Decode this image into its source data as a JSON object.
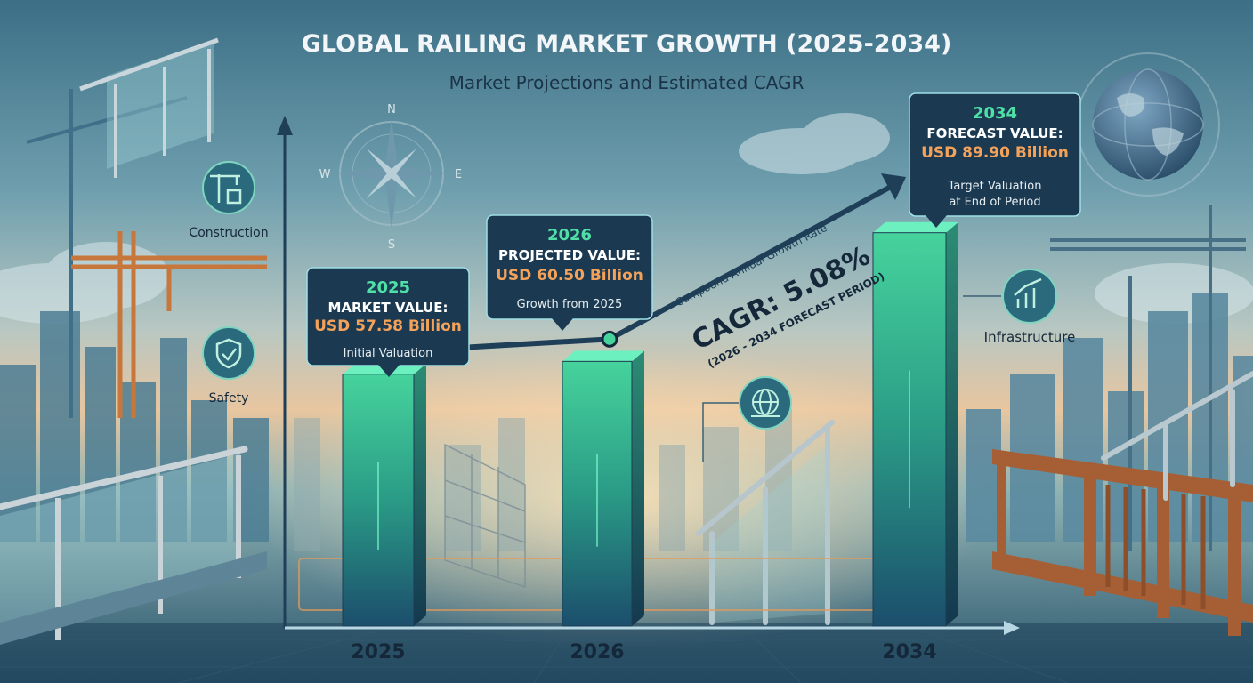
{
  "title": "GLOBAL RAILING MARKET GROWTH (2025-2034)",
  "subtitle": "Market Projections and Estimated CAGR",
  "compass": {
    "n": "N",
    "s": "S",
    "e": "E",
    "w": "W"
  },
  "segments": {
    "construction": "Construction",
    "safety": "Safety",
    "infrastructure": "Infrastructure"
  },
  "callouts": [
    {
      "year": "2025",
      "heading": "MARKET VALUE:",
      "value": "USD 57.58 Billion",
      "note": "Initial Valuation"
    },
    {
      "year": "2026",
      "heading": "PROJECTED VALUE:",
      "value": "USD 60.50 Billion",
      "note": "Growth from 2025"
    },
    {
      "year": "2034",
      "heading": "FORECAST VALUE:",
      "value": "USD 89.90 Billion",
      "note_line1": "Target Valuation",
      "note_line2": "at End of Period"
    }
  ],
  "cagr": {
    "caption": "Compound Annual Growth Rate",
    "value": "CAGR: 5.08%",
    "period": "(2026 - 2034 FORECAST PERIOD)"
  },
  "chart_data": {
    "type": "bar",
    "categories": [
      "2025",
      "2026",
      "2034"
    ],
    "values": [
      57.58,
      60.5,
      89.9
    ],
    "unit": "USD Billion",
    "title": "GLOBAL RAILING MARKET GROWTH (2025-2034)",
    "subtitle": "Market Projections and Estimated CAGR",
    "ylim": [
      0,
      100
    ],
    "grid": false,
    "legend": "none",
    "bar_color": "#2fae84",
    "trend_color": "#1e3f57",
    "accent_color": "#f4a259"
  }
}
